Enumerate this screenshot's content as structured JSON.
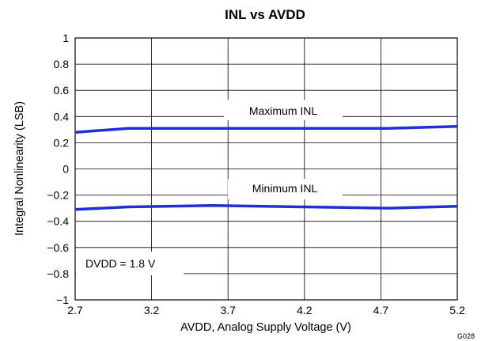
{
  "chart_data": {
    "type": "line",
    "title": "INL vs AVDD",
    "xlabel": "AVDD, Analog Supply Voltage (V)",
    "ylabel": "Integral Nonlinearity (LSB)",
    "xlim": [
      2.7,
      5.2
    ],
    "ylim": [
      -1,
      1
    ],
    "x_ticks": [
      "2.7",
      "3.2",
      "3.7",
      "4.2",
      "4.7",
      "5.2"
    ],
    "y_ticks": [
      "1",
      "0.8",
      "0.6",
      "0.4",
      "0.2",
      "0",
      "−0.2",
      "−0.4",
      "−0.6",
      "−0.8",
      "−1"
    ],
    "grid": true,
    "line_color": "#1f2fd6",
    "series": [
      {
        "name": "Maximum INL",
        "x": [
          2.7,
          3.05,
          3.6,
          4.2,
          4.75,
          5.2
        ],
        "values": [
          0.28,
          0.31,
          0.31,
          0.31,
          0.31,
          0.325
        ]
      },
      {
        "name": "Minimum INL",
        "x": [
          2.7,
          3.05,
          3.6,
          4.2,
          4.75,
          5.2
        ],
        "values": [
          -0.31,
          -0.29,
          -0.28,
          -0.29,
          -0.3,
          -0.285
        ]
      }
    ],
    "annotations": {
      "max_label": "Maximum INL",
      "min_label": "Minimum INL",
      "condition": "DVDD = 1.8 V",
      "figure_code": "G028"
    }
  }
}
